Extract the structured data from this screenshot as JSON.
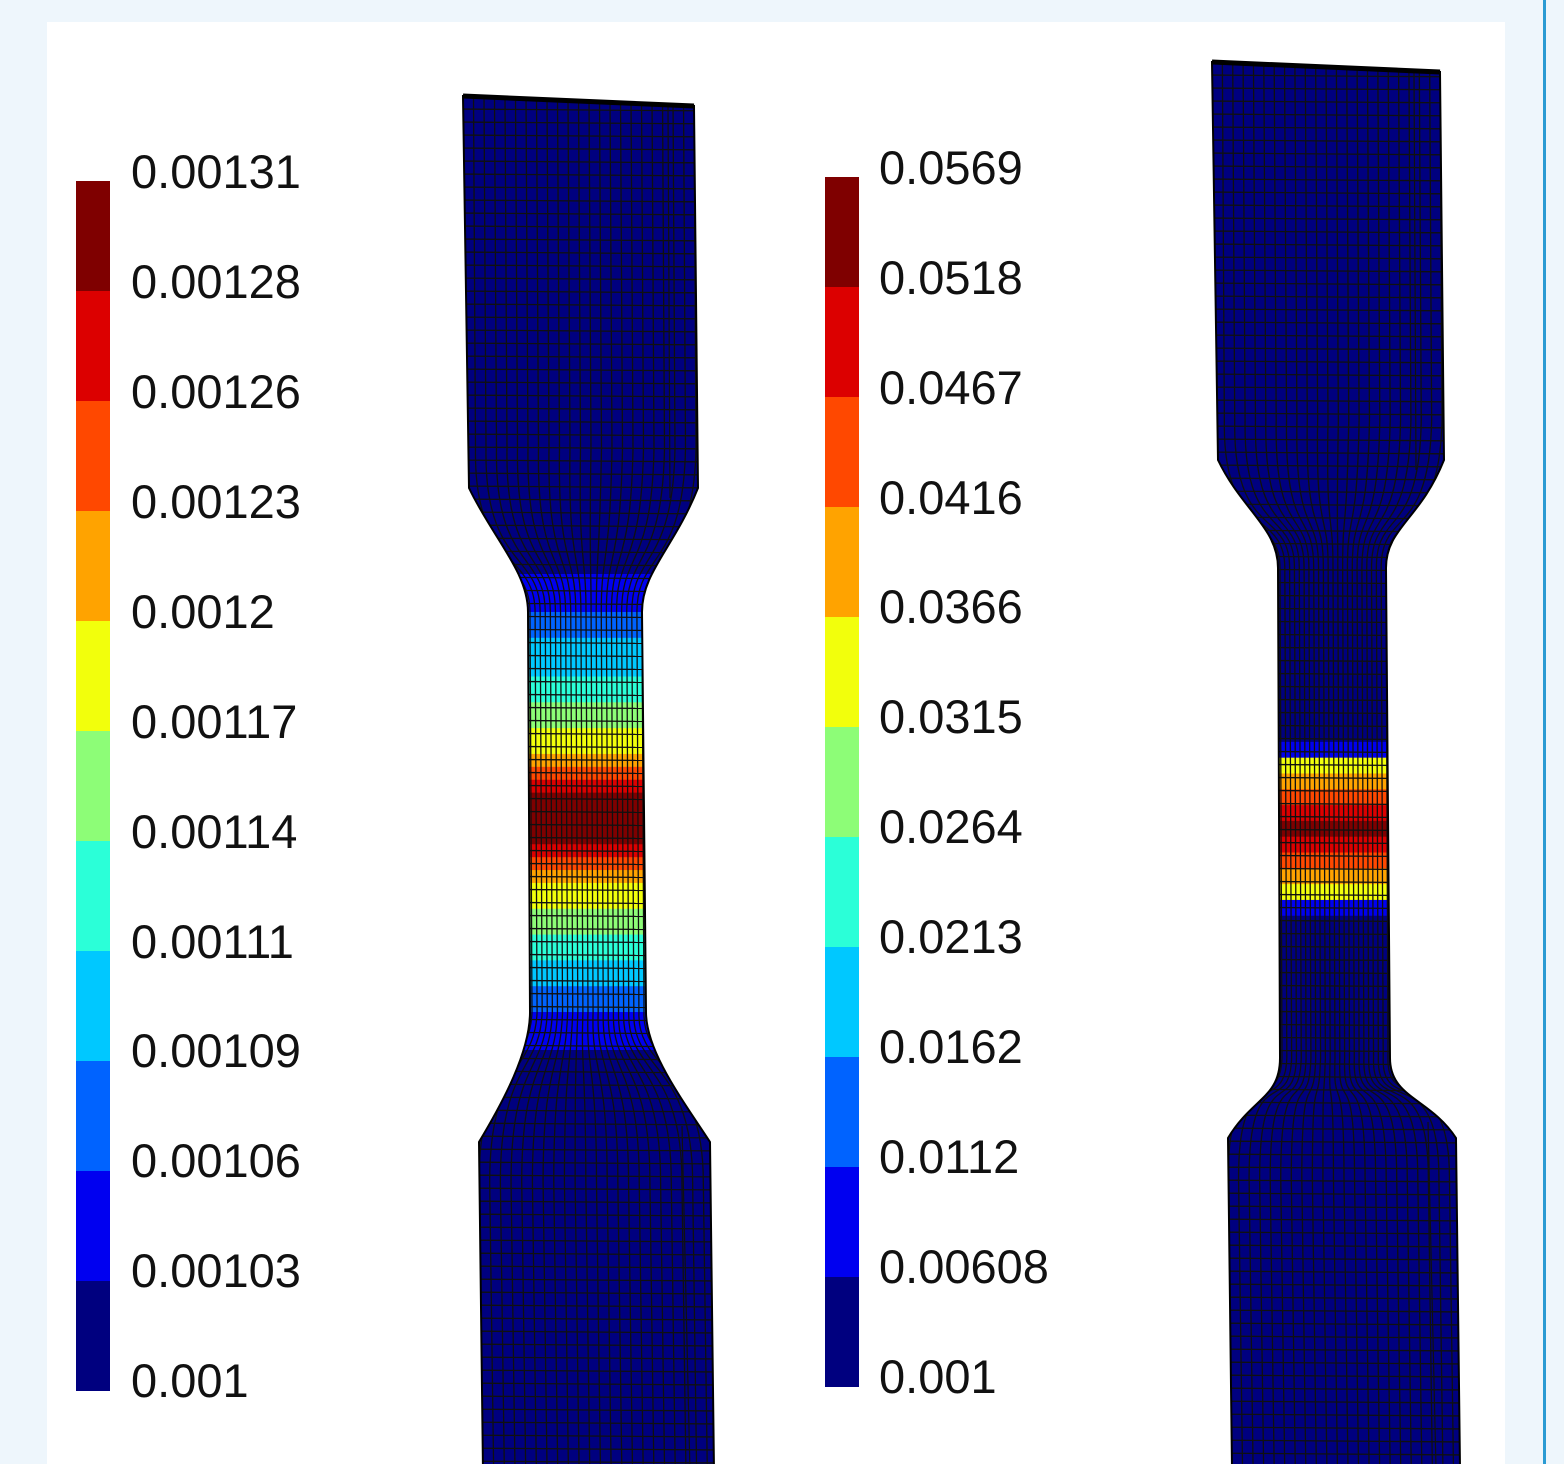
{
  "colors": {
    "palette": [
      "#00007f",
      "#0000f0",
      "#0063ff",
      "#00c8ff",
      "#2bffd8",
      "#8dfd77",
      "#f2ff0c",
      "#ffa300",
      "#ff4800",
      "#dc0000",
      "#7f0000"
    ],
    "mesh_line": "#101010",
    "background_outer": "#eef6fc",
    "background_panel": "#ffffff"
  },
  "legends": [
    {
      "name": "left-color-scale",
      "labels": [
        "0.00131",
        "0.00128",
        "0.00126",
        "0.00123",
        "0.0012",
        "0.00117",
        "0.00114",
        "0.00111",
        "0.00109",
        "0.00106",
        "0.00103",
        "0.001"
      ]
    },
    {
      "name": "right-color-scale",
      "labels": [
        "0.0569",
        "0.0518",
        "0.0467",
        "0.0416",
        "0.0366",
        "0.0315",
        "0.0264",
        "0.0213",
        "0.0162",
        "0.0112",
        "0.00608",
        "0.001"
      ]
    }
  ],
  "specimens": [
    {
      "name": "left-specimen",
      "gauge_row_levels": [
        2,
        2,
        3,
        3,
        3,
        4,
        4,
        5,
        5,
        6,
        6,
        7,
        8,
        9,
        10,
        10,
        10,
        10,
        9,
        8,
        7,
        6,
        6,
        5,
        5,
        4,
        4,
        3,
        3,
        2,
        2
      ]
    },
    {
      "name": "right-specimen",
      "gauge_row_levels": [
        0,
        0,
        0,
        0,
        0,
        0,
        0,
        0,
        0,
        0,
        0,
        1,
        6,
        7,
        8,
        9,
        10,
        9,
        8,
        7,
        6,
        1,
        0,
        0,
        0,
        0,
        0,
        0,
        0,
        0,
        0
      ]
    }
  ]
}
